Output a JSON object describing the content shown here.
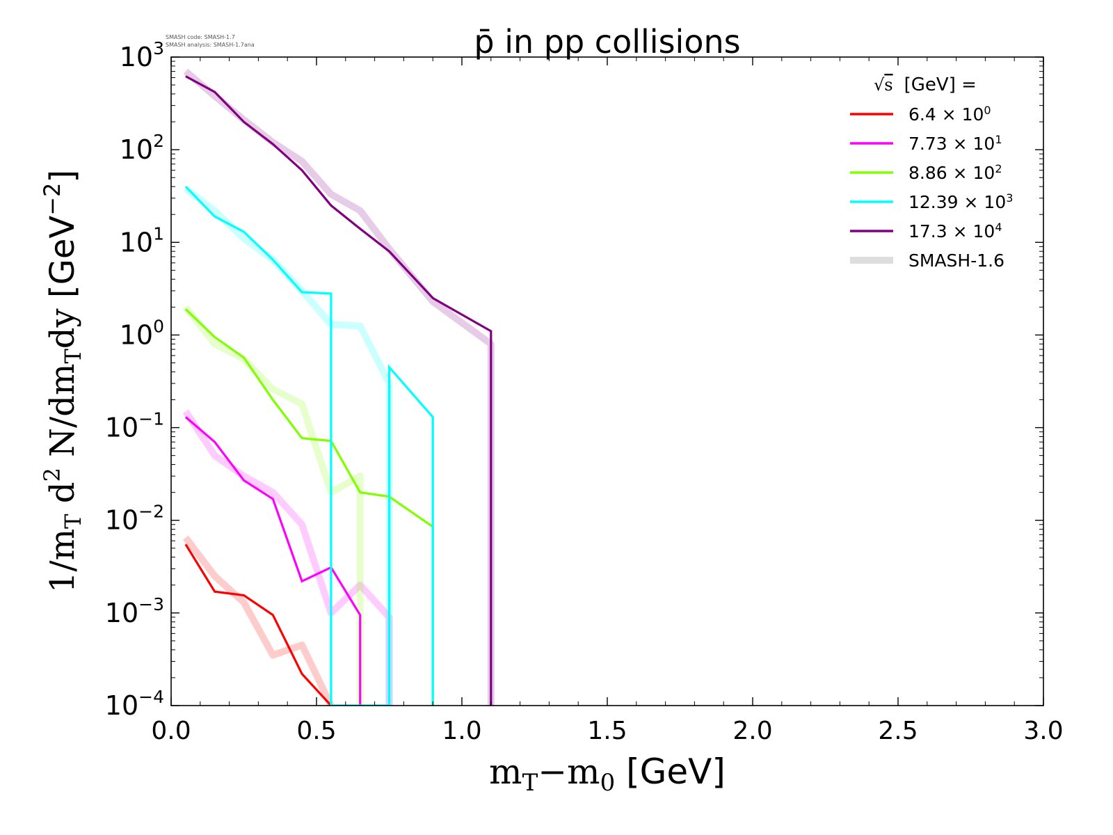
{
  "header": {
    "meta_line_1": "SMASH code:      SMASH-1.7",
    "meta_line_2": "SMASH analysis: SMASH-1.7ana"
  },
  "chart_data": {
    "type": "line",
    "title": "p̄ in pp collisions",
    "xlabel": "m_T−m_0 [GeV]",
    "ylabel": "1/m_T d^2 N/dm_T dy [GeV^−2]",
    "xlim": [
      0.0,
      3.0
    ],
    "ylim": [
      0.0001,
      1000
    ],
    "yscale": "log",
    "grid": false,
    "x_ticks": [
      "0.0",
      "0.5",
      "1.0",
      "1.5",
      "2.0",
      "2.5",
      "3.0"
    ],
    "y_ticks": [
      {
        "mant": "10",
        "exp": "−4"
      },
      {
        "mant": "10",
        "exp": "−3"
      },
      {
        "mant": "10",
        "exp": "−2"
      },
      {
        "mant": "10",
        "exp": "−1"
      },
      {
        "mant": "10",
        "exp": "0"
      },
      {
        "mant": "10",
        "exp": "1"
      },
      {
        "mant": "10",
        "exp": "2"
      },
      {
        "mant": "10",
        "exp": "3"
      }
    ],
    "legend": {
      "placement": "top-right",
      "title": "[GeV] =",
      "title_sqrt": "s",
      "reference_label": "SMASH-1.6"
    },
    "series": [
      {
        "name": "6.4",
        "scale_exp": "0",
        "color": "#ff0000",
        "x": [
          0.05,
          0.15,
          0.25,
          0.35,
          0.45,
          0.55
        ],
        "y": [
          0.0055,
          0.0017,
          0.00155,
          0.00095,
          0.00022,
          0.0001
        ],
        "ref_x": [
          0.05,
          0.15,
          0.25,
          0.35,
          0.45,
          0.55
        ],
        "ref_y": [
          0.0065,
          0.0025,
          0.0013,
          0.00035,
          0.00045,
          0.0001
        ]
      },
      {
        "name": "7.73",
        "scale_exp": "1",
        "color": "#ff00ff",
        "x": [
          0.05,
          0.15,
          0.25,
          0.35,
          0.45,
          0.55,
          0.65,
          0.65
        ],
        "y": [
          0.13,
          0.07,
          0.027,
          0.017,
          0.0022,
          0.0031,
          0.00095,
          0.0001
        ],
        "ref_x": [
          0.05,
          0.15,
          0.25,
          0.35,
          0.45,
          0.55,
          0.65,
          0.75,
          0.75
        ],
        "ref_y": [
          0.15,
          0.05,
          0.03,
          0.02,
          0.009,
          0.001,
          0.002,
          0.0009,
          0.0001
        ]
      },
      {
        "name": "8.86",
        "scale_exp": "2",
        "color": "#80ff00",
        "x": [
          0.05,
          0.15,
          0.25,
          0.35,
          0.45,
          0.55,
          0.65,
          0.75,
          0.9,
          0.9
        ],
        "y": [
          1.9,
          0.95,
          0.57,
          0.2,
          0.077,
          0.072,
          0.02,
          0.018,
          0.0085,
          0.0001
        ],
        "ref_x": [
          0.05,
          0.15,
          0.25,
          0.35,
          0.45,
          0.55,
          0.65,
          0.65
        ],
        "ref_y": [
          2.0,
          0.8,
          0.55,
          0.26,
          0.18,
          0.02,
          0.03,
          0.0001
        ]
      },
      {
        "name": "12.39",
        "scale_exp": "3",
        "color": "#00ffff",
        "x": [
          0.05,
          0.15,
          0.25,
          0.35,
          0.45,
          0.55,
          0.55,
          0.75,
          0.75,
          0.9,
          0.9
        ],
        "y": [
          40,
          19,
          13,
          6.5,
          2.9,
          2.8,
          0.0001,
          0.0001,
          0.45,
          0.13,
          0.0001
        ],
        "ref_x": [
          0.05,
          0.15,
          0.25,
          0.35,
          0.45,
          0.55,
          0.65,
          0.75,
          0.75
        ],
        "ref_y": [
          38,
          22,
          11,
          6.5,
          3.0,
          1.3,
          1.25,
          0.3,
          0.0001
        ]
      },
      {
        "name": "17.3",
        "scale_exp": "4",
        "color": "#800080",
        "x": [
          0.05,
          0.15,
          0.25,
          0.35,
          0.45,
          0.55,
          0.65,
          0.75,
          0.9,
          1.1,
          1.1
        ],
        "y": [
          620,
          420,
          200,
          115,
          60,
          25,
          14,
          8,
          2.5,
          1.1,
          0.0001
        ],
        "ref_x": [
          0.05,
          0.15,
          0.25,
          0.35,
          0.45,
          0.55,
          0.65,
          0.75,
          0.9,
          1.1,
          1.1
        ],
        "ref_y": [
          700,
          380,
          210,
          120,
          75,
          33,
          22,
          8.5,
          2.3,
          0.8,
          0.0001
        ]
      }
    ]
  }
}
